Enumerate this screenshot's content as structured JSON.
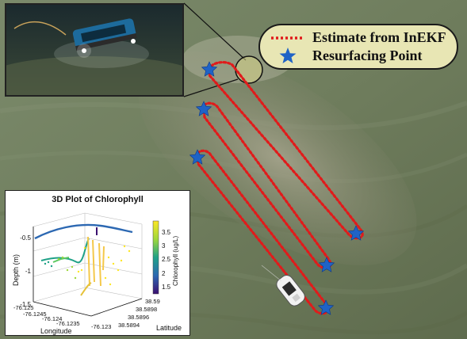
{
  "legend": {
    "estimate_label": "Estimate from InEKF",
    "resurfacing_label": "Resurfacing Point"
  },
  "colors": {
    "estimate_path": "#e01b1b",
    "star": "#1f63c6",
    "legend_bg": "#e8e6b4",
    "water": "#6c7a58"
  },
  "chart_data": {
    "type": "scatter",
    "title": "3D Plot of Chlorophyll",
    "zlabel": "Depth (m)",
    "xlabel": "Longitude",
    "ylabel": "Latitude",
    "colorbar_label": "Chlorophyll (ug/L)",
    "z_ticks": [
      "-0.5",
      "-1",
      "-1.5"
    ],
    "x_ticks": [
      "-76.125",
      "-76.1245",
      "-76.124",
      "-76.1235",
      "-76.123"
    ],
    "y_ticks": [
      "38.59",
      "38.5898",
      "38.5896",
      "38.5894"
    ],
    "colorbar_ticks": [
      "3.5",
      "3",
      "2.5",
      "2",
      "1.5"
    ],
    "zlim": [
      -1.5,
      -0.5
    ],
    "colorbar_range": [
      1.3,
      3.7
    ],
    "colormap": [
      "#3b0f70",
      "#2c68b2",
      "#1fa187",
      "#9fd83b",
      "#fde725"
    ]
  }
}
